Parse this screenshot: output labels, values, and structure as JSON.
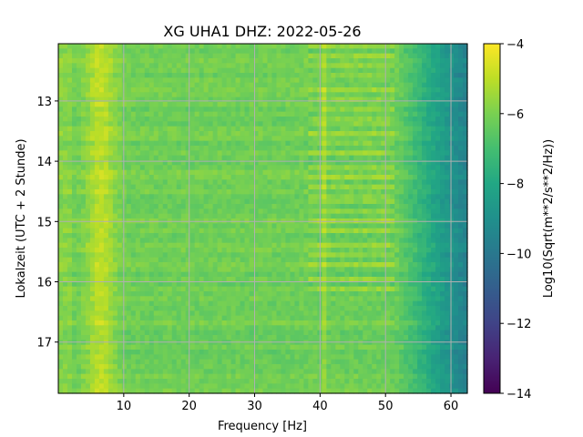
{
  "chart_data": {
    "type": "heatmap",
    "title": "XG UHA1  DHZ: 2022-05-26",
    "xlabel": "Frequency [Hz]",
    "ylabel": "Lokalzeit (UTC + 2 Stunde)",
    "xlim": [
      0,
      62.5
    ],
    "ylim": [
      17.85,
      12.05
    ],
    "y_inverted": true,
    "xticks": [
      10,
      20,
      30,
      40,
      50,
      60
    ],
    "yticks": [
      13,
      14,
      15,
      16,
      17
    ],
    "grid": true,
    "colormap": "viridis",
    "colorbar": {
      "label": "Log10(Sqrt(m**2/s**2/Hz))",
      "range": [
        -14,
        -4
      ],
      "ticks": [
        -4,
        -6,
        -8,
        -10,
        -12,
        -14
      ]
    },
    "features": {
      "background_level": -6.2,
      "low_frequency_peak_hz": 6.5,
      "low_frequency_peak_level": -5,
      "narrowband_line_hz": 40.5,
      "high_frequency_cutoff_hz": 51.5,
      "level_at_62hz": -9.5
    }
  }
}
